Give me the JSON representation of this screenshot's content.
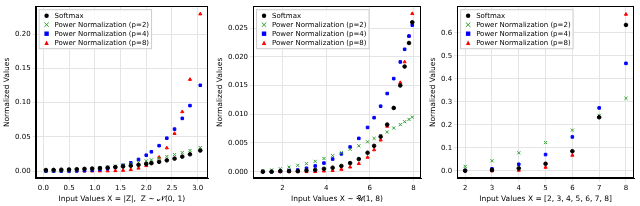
{
  "chart_data": [
    {
      "type": "scatter",
      "x_label": "Input Values X = |Z|,  Z ∼ 𝒩(0, 1)",
      "y_label": "Normalized Values",
      "x": [
        0.05,
        0.2,
        0.35,
        0.5,
        0.65,
        0.8,
        0.95,
        1.1,
        1.25,
        1.4,
        1.55,
        1.7,
        1.85,
        2.0,
        2.1,
        2.25,
        2.4,
        2.55,
        2.7,
        2.85,
        3.05
      ],
      "series": [
        {
          "name": "Softmax",
          "color": "black",
          "marker": "circle",
          "values": [
            0.0015,
            0.0017,
            0.002,
            0.0023,
            0.0027,
            0.0032,
            0.0037,
            0.0043,
            0.005,
            0.0058,
            0.0067,
            0.0078,
            0.0091,
            0.0105,
            0.0116,
            0.0135,
            0.0157,
            0.0182,
            0.0211,
            0.0245,
            0.03
          ]
        },
        {
          "name": "Power Normalization (p=2)",
          "color": "#2ca02c",
          "marker": "x",
          "values": [
            0,
            0.0001,
            0.0005,
            0.0009,
            0.0016,
            0.0024,
            0.0033,
            0.0045,
            0.0058,
            0.0073,
            0.0089,
            0.0107,
            0.0127,
            0.0148,
            0.0163,
            0.0187,
            0.0213,
            0.0241,
            0.027,
            0.0301,
            0.0344
          ]
        },
        {
          "name": "Power Normalization (p=4)",
          "color": "blue",
          "marker": "square",
          "values": [
            0,
            0,
            0,
            0.0001,
            0.0003,
            0.0006,
            0.0012,
            0.0021,
            0.0035,
            0.0056,
            0.0084,
            0.0121,
            0.017,
            0.0232,
            0.0282,
            0.0371,
            0.0481,
            0.0613,
            0.077,
            0.0957,
            0.1254
          ]
        },
        {
          "name": "Power Normalization (p=8)",
          "color": "red",
          "marker": "triangle",
          "values": [
            0,
            0,
            0,
            0,
            0,
            0,
            0,
            0.0001,
            0.0002,
            0.0005,
            0.001,
            0.0021,
            0.0042,
            0.0079,
            0.0116,
            0.0201,
            0.0338,
            0.0549,
            0.0867,
            0.1339,
            0.2296
          ]
        }
      ],
      "xlim": [
        -0.15,
        3.2
      ],
      "ylim": [
        -0.011,
        0.241
      ],
      "xticks": [
        {
          "value": 0,
          "label": "0.0"
        },
        {
          "value": 0.5,
          "label": "0.5"
        },
        {
          "value": 1,
          "label": "1.0"
        },
        {
          "value": 1.5,
          "label": "1.5"
        },
        {
          "value": 2,
          "label": "2.0"
        },
        {
          "value": 2.5,
          "label": "2.5"
        },
        {
          "value": 3,
          "label": "3.0"
        }
      ],
      "yticks": [
        {
          "value": 0,
          "label": "0.00"
        },
        {
          "value": 0.05,
          "label": "0.05"
        },
        {
          "value": 0.1,
          "label": "0.10"
        },
        {
          "value": 0.15,
          "label": "0.15"
        },
        {
          "value": 0.2,
          "label": "0.20"
        }
      ],
      "grid": true,
      "legend": "upper left"
    },
    {
      "type": "scatter",
      "x_label": "Input Values X ∼ 𝒰(1, 8)",
      "y_label": "Normalized Values",
      "x": [
        1.1,
        1.5,
        1.9,
        2.3,
        2.7,
        3.1,
        3.5,
        3.9,
        4.3,
        4.7,
        5.1,
        5.5,
        5.9,
        6.2,
        6.5,
        6.8,
        7.1,
        7.4,
        7.6,
        7.8,
        7.95
      ],
      "series": [
        {
          "name": "Softmax",
          "color": "black",
          "marker": "circle",
          "values": [
            0,
            0,
            0.0001,
            0.0001,
            0.0001,
            0.0002,
            0.0003,
            0.0005,
            0.0007,
            0.001,
            0.0015,
            0.0022,
            0.0033,
            0.0045,
            0.0061,
            0.0082,
            0.0111,
            0.015,
            0.0183,
            0.0224,
            0.026
          ]
        },
        {
          "name": "Power Normalization (p=2)",
          "color": "#2ca02c",
          "marker": "x",
          "values": [
            0.0002,
            0.0003,
            0.0005,
            0.0008,
            0.0011,
            0.0014,
            0.0018,
            0.0023,
            0.0028,
            0.0033,
            0.0039,
            0.0045,
            0.0052,
            0.0058,
            0.0063,
            0.0069,
            0.0076,
            0.0082,
            0.0087,
            0.0091,
            0.0095
          ]
        },
        {
          "name": "Power Normalization (p=4)",
          "color": "blue",
          "marker": "square",
          "values": [
            0,
            0,
            0.0001,
            0.0002,
            0.0003,
            0.0006,
            0.001,
            0.0015,
            0.0022,
            0.0031,
            0.0043,
            0.0058,
            0.0077,
            0.0094,
            0.0114,
            0.0136,
            0.0162,
            0.0191,
            0.0213,
            0.0236,
            0.0255
          ]
        },
        {
          "name": "Power Normalization (p=8)",
          "color": "red",
          "marker": "triangle",
          "values": [
            0,
            0,
            0,
            0,
            0,
            0,
            0,
            0.0001,
            0.0002,
            0.0004,
            0.0008,
            0.0014,
            0.0025,
            0.0038,
            0.0055,
            0.0079,
            0.0111,
            0.0155,
            0.0191,
            0.0236,
            0.0275
          ]
        }
      ],
      "xlim": [
        0.65,
        8.35
      ],
      "ylim": [
        -0.0012,
        0.0288
      ],
      "xticks": [
        2,
        4,
        6,
        8
      ],
      "yticks": [
        {
          "value": 0,
          "label": "0.000"
        },
        {
          "value": 0.005,
          "label": "0.005"
        },
        {
          "value": 0.01,
          "label": "0.010"
        },
        {
          "value": 0.015,
          "label": "0.015"
        },
        {
          "value": 0.02,
          "label": "0.020"
        },
        {
          "value": 0.025,
          "label": "0.025"
        }
      ],
      "grid": true,
      "legend": "upper left"
    },
    {
      "type": "scatter",
      "x_label": "Input Values X = [2, 3, 4, 5, 6, 7, 8]",
      "y_label": "Normalized Values",
      "x": [
        2,
        3,
        4,
        5,
        6,
        7,
        8
      ],
      "series": [
        {
          "name": "Softmax",
          "color": "black",
          "marker": "circle",
          "values": [
            0.0016,
            0.0043,
            0.0116,
            0.0315,
            0.0858,
            0.2331,
            0.6337
          ]
        },
        {
          "name": "Power Normalization (p=2)",
          "color": "#2ca02c",
          "marker": "x",
          "values": [
            0.0197,
            0.0443,
            0.0788,
            0.1232,
            0.1773,
            0.2414,
            0.3153
          ]
        },
        {
          "name": "Power Normalization (p=4)",
          "color": "blue",
          "marker": "square",
          "values": [
            0.0018,
            0.0092,
            0.0292,
            0.0713,
            0.1478,
            0.2737,
            0.467
          ]
        },
        {
          "name": "Power Normalization (p=8)",
          "color": "red",
          "marker": "triangle",
          "values": [
            0,
            0.0003,
            0.0027,
            0.0158,
            0.068,
            0.2335,
            0.6797
          ]
        }
      ],
      "xlim": [
        1.7,
        8.3
      ],
      "ylim": [
        -0.033,
        0.715
      ],
      "xticks": [
        2,
        3,
        4,
        5,
        6,
        7,
        8
      ],
      "yticks": [
        {
          "value": 0,
          "label": "0.0"
        },
        {
          "value": 0.1,
          "label": "0.1"
        },
        {
          "value": 0.2,
          "label": "0.2"
        },
        {
          "value": 0.3,
          "label": "0.3"
        },
        {
          "value": 0.4,
          "label": "0.4"
        },
        {
          "value": 0.5,
          "label": "0.5"
        },
        {
          "value": 0.6,
          "label": "0.6"
        }
      ],
      "grid": true,
      "legend": "upper left"
    }
  ]
}
